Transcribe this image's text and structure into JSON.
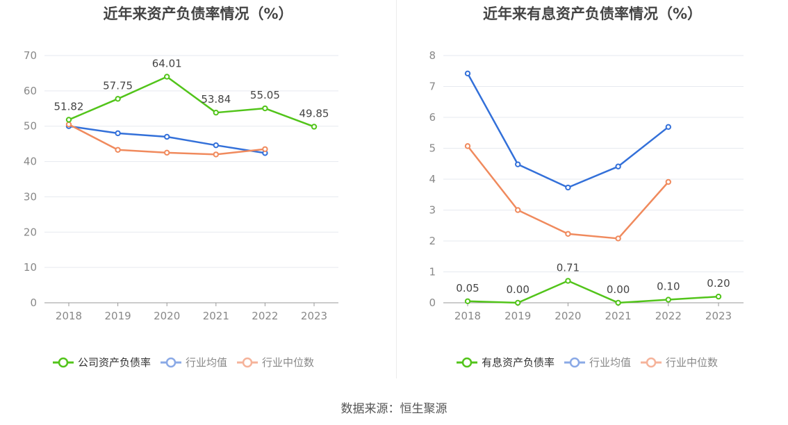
{
  "chart_data": [
    {
      "type": "line",
      "title": "近年来资产负债率情况（%）",
      "categories": [
        "2018",
        "2019",
        "2020",
        "2021",
        "2022",
        "2023"
      ],
      "ylim": [
        0,
        70
      ],
      "yticks": [
        "0",
        "10",
        "20",
        "30",
        "40",
        "50",
        "60",
        "70"
      ],
      "grid": true,
      "legend_position": "bottom",
      "series": [
        {
          "name": "公司资产负债率",
          "color": "#52c41a",
          "values": [
            51.82,
            57.75,
            64.01,
            53.84,
            55.05,
            49.85
          ],
          "labels": [
            "51.82",
            "57.75",
            "64.01",
            "53.84",
            "55.05",
            "49.85"
          ]
        },
        {
          "name": "行业均值",
          "color": "#3370d9",
          "values": [
            50.0,
            48.0,
            47.0,
            44.6,
            42.4,
            null
          ]
        },
        {
          "name": "行业中位数",
          "color": "#f08a5d",
          "values": [
            50.5,
            43.3,
            42.5,
            42.0,
            43.5,
            null
          ]
        }
      ]
    },
    {
      "type": "line",
      "title": "近年来有息资产负债率情况（%）",
      "categories": [
        "2018",
        "2019",
        "2020",
        "2021",
        "2022",
        "2023"
      ],
      "ylim": [
        0,
        8
      ],
      "yticks": [
        "0",
        "1",
        "2",
        "3",
        "4",
        "5",
        "6",
        "7",
        "8"
      ],
      "grid": true,
      "legend_position": "bottom",
      "series": [
        {
          "name": "有息资产负债率",
          "color": "#52c41a",
          "values": [
            0.05,
            0.0,
            0.71,
            0.0,
            0.1,
            0.2
          ],
          "labels": [
            "0.05",
            "0.00",
            "0.71",
            "0.00",
            "0.10",
            "0.20"
          ]
        },
        {
          "name": "行业均值",
          "color": "#3370d9",
          "values": [
            7.42,
            4.48,
            3.73,
            4.41,
            5.69,
            null
          ]
        },
        {
          "name": "行业中位数",
          "color": "#f08a5d",
          "values": [
            5.07,
            3.0,
            2.23,
            2.08,
            3.91,
            null
          ]
        }
      ]
    }
  ],
  "legend_colors": [
    "#52c41a",
    "#8aa9e6",
    "#f5b39a"
  ],
  "source": "数据来源：恒生聚源"
}
